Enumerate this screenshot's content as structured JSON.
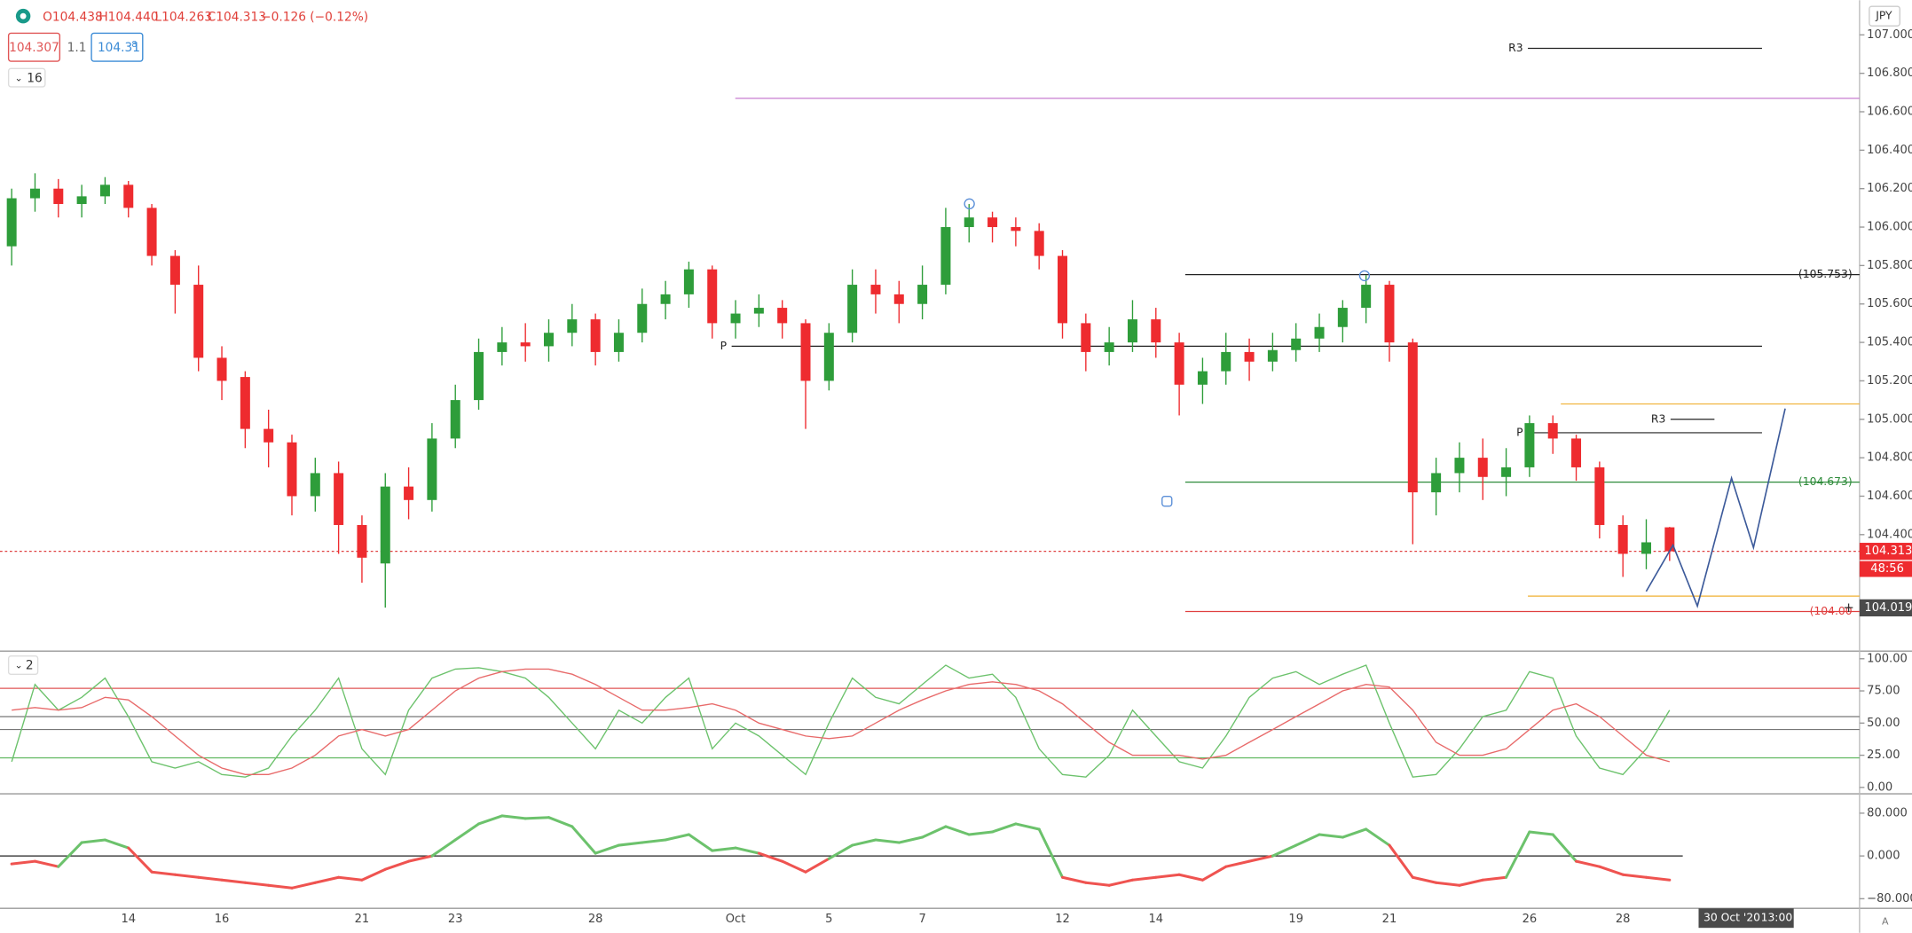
{
  "header": {
    "ohlc": [
      "O104.438",
      "H104.440",
      "L104.263",
      "C104.313"
    ],
    "change": "−0.126 (−0.12%)",
    "bid": "104.307",
    "spread": "1.1",
    "ask": "104.31",
    "ask_small": "8"
  },
  "indicator_toggles": [
    "16",
    "2"
  ],
  "currency": "JPY",
  "crosshair_time": [
    "30 Oct '20",
    "13:00"
  ],
  "countdown": "48:56",
  "corner_badge": "A",
  "chart_data": [
    {
      "type": "candlestick",
      "categories": [
        null,
        null,
        null,
        null,
        null,
        "14",
        null,
        null,
        null,
        "16",
        null,
        null,
        null,
        null,
        null,
        "21",
        null,
        null,
        null,
        "23",
        null,
        null,
        null,
        null,
        null,
        "28",
        null,
        null,
        null,
        null,
        null,
        "Oct",
        null,
        null,
        null,
        "5",
        null,
        null,
        null,
        "7",
        null,
        null,
        null,
        null,
        null,
        "12",
        null,
        null,
        null,
        "14",
        null,
        null,
        null,
        null,
        null,
        "19",
        null,
        null,
        null,
        "21",
        null,
        null,
        null,
        null,
        null,
        "26",
        null,
        null,
        null,
        "28",
        null,
        null
      ],
      "open": [
        105.9,
        106.15,
        106.2,
        106.12,
        106.16,
        106.22,
        106.1,
        105.85,
        105.7,
        105.32,
        105.22,
        104.95,
        104.88,
        104.6,
        104.72,
        104.45,
        104.25,
        104.65,
        104.58,
        104.9,
        105.1,
        105.35,
        105.4,
        105.38,
        105.45,
        105.52,
        105.35,
        105.45,
        105.6,
        105.65,
        105.78,
        105.5,
        105.55,
        105.58,
        105.5,
        105.2,
        105.45,
        105.7,
        105.65,
        105.6,
        105.7,
        106.0,
        106.05,
        106.0,
        105.98,
        105.85,
        105.5,
        105.35,
        105.4,
        105.52,
        105.4,
        105.18,
        105.25,
        105.35,
        105.3,
        105.36,
        105.42,
        105.48,
        105.58,
        105.7,
        105.4,
        104.62,
        104.72,
        104.8,
        104.7,
        104.75,
        104.98,
        104.9,
        104.75,
        104.45,
        104.3,
        104.438
      ],
      "high": [
        106.2,
        106.28,
        106.25,
        106.22,
        106.26,
        106.24,
        106.12,
        105.88,
        105.8,
        105.38,
        105.25,
        105.05,
        104.92,
        104.8,
        104.78,
        104.5,
        104.72,
        104.75,
        104.98,
        105.18,
        105.42,
        105.48,
        105.5,
        105.52,
        105.6,
        105.55,
        105.52,
        105.68,
        105.72,
        105.82,
        105.8,
        105.62,
        105.65,
        105.62,
        105.52,
        105.5,
        105.78,
        105.78,
        105.72,
        105.8,
        106.1,
        106.12,
        106.08,
        106.05,
        106.02,
        105.88,
        105.55,
        105.48,
        105.62,
        105.58,
        105.45,
        105.32,
        105.45,
        105.42,
        105.45,
        105.5,
        105.55,
        105.62,
        105.75,
        105.72,
        105.42,
        104.8,
        104.88,
        104.9,
        104.85,
        105.02,
        105.02,
        104.92,
        104.78,
        104.5,
        104.48,
        104.44
      ],
      "low": [
        105.8,
        106.08,
        106.05,
        106.05,
        106.12,
        106.05,
        105.8,
        105.55,
        105.25,
        105.1,
        104.85,
        104.75,
        104.5,
        104.52,
        104.3,
        104.15,
        104.02,
        104.48,
        104.52,
        104.85,
        105.05,
        105.28,
        105.3,
        105.3,
        105.38,
        105.28,
        105.3,
        105.4,
        105.52,
        105.58,
        105.42,
        105.42,
        105.48,
        105.42,
        104.95,
        105.15,
        105.4,
        105.55,
        105.5,
        105.52,
        105.65,
        105.92,
        105.92,
        105.9,
        105.78,
        105.42,
        105.25,
        105.28,
        105.35,
        105.32,
        105.02,
        105.08,
        105.18,
        105.2,
        105.25,
        105.3,
        105.35,
        105.4,
        105.5,
        105.3,
        104.35,
        104.5,
        104.62,
        104.58,
        104.6,
        104.7,
        104.82,
        104.68,
        104.38,
        104.18,
        104.22,
        104.263
      ],
      "close": [
        106.15,
        106.2,
        106.12,
        106.16,
        106.22,
        106.1,
        105.85,
        105.7,
        105.32,
        105.2,
        104.95,
        104.88,
        104.6,
        104.72,
        104.45,
        104.28,
        104.65,
        104.58,
        104.9,
        105.1,
        105.35,
        105.4,
        105.38,
        105.45,
        105.52,
        105.35,
        105.45,
        105.6,
        105.65,
        105.78,
        105.5,
        105.55,
        105.58,
        105.5,
        105.2,
        105.45,
        105.7,
        105.65,
        105.6,
        105.7,
        106.0,
        106.05,
        106.0,
        105.98,
        105.85,
        105.5,
        105.35,
        105.4,
        105.52,
        105.4,
        105.18,
        105.25,
        105.35,
        105.3,
        105.36,
        105.42,
        105.48,
        105.58,
        105.7,
        105.4,
        104.62,
        104.72,
        104.8,
        104.7,
        104.75,
        104.98,
        104.9,
        104.75,
        104.45,
        104.3,
        104.36,
        104.313
      ],
      "up_color": "#2e9d3a",
      "down_color": "#ee2b2f",
      "ylim": [
        103.8,
        107.18
      ],
      "yticks": [
        {
          "value": 104.2,
          "label": "104.200"
        },
        {
          "value": 104.4,
          "label": "104.400"
        },
        {
          "value": 104.6,
          "label": "104.600"
        },
        {
          "value": 104.8,
          "label": "104.800"
        },
        {
          "value": 105.0,
          "label": "105.000"
        },
        {
          "value": 105.2,
          "label": "105.200"
        },
        {
          "value": 105.4,
          "label": "105.400"
        },
        {
          "value": 105.6,
          "label": "105.600"
        },
        {
          "value": 105.8,
          "label": "105.800"
        },
        {
          "value": 106.0,
          "label": "106.000"
        },
        {
          "value": 106.2,
          "label": "106.200"
        },
        {
          "value": 106.4,
          "label": "106.400"
        },
        {
          "value": 106.6,
          "label": "106.600"
        },
        {
          "value": 106.8,
          "label": "106.800"
        },
        {
          "value": 107.0,
          "label": "107.000"
        }
      ],
      "levels": [
        {
          "value": 106.93,
          "label": "R3",
          "color": "#222222"
        },
        {
          "value": 106.67,
          "color": "#c77dd1"
        },
        {
          "value": 105.38,
          "label": "P",
          "color": "#222222"
        },
        {
          "value": 105.753,
          "label": "(105.753)",
          "color": "#222222"
        },
        {
          "value": 104.673,
          "label": "(104.673)",
          "color": "#2e8b3a"
        },
        {
          "value": 104.0,
          "label": "(104.00",
          "color": "#e04040"
        },
        {
          "value": 105.08,
          "color": "#f0b030"
        },
        {
          "value": 104.08,
          "color": "#f0b030"
        },
        {
          "value": 105.0,
          "label": "R3",
          "color": "#222222"
        },
        {
          "value": 104.93,
          "label": "P",
          "color": "#222222"
        },
        {
          "value": 104.313,
          "color": "#e04040"
        }
      ],
      "last_price": 104.313,
      "crosshair_price": 104.019
    },
    {
      "type": "line",
      "series": [
        {
          "color": "#6cc26c",
          "values": [
            20,
            80,
            60,
            70,
            85,
            55,
            20,
            15,
            20,
            10,
            8,
            15,
            40,
            60,
            85,
            30,
            10,
            60,
            85,
            92,
            93,
            90,
            85,
            70,
            50,
            30,
            60,
            50,
            70,
            85,
            30,
            50,
            40,
            25,
            10,
            50,
            85,
            70,
            65,
            80,
            95,
            85,
            88,
            70,
            30,
            10,
            8,
            25,
            60,
            40,
            20,
            15,
            40,
            70,
            85,
            90,
            80,
            88,
            95,
            50,
            8,
            10,
            30,
            55,
            60,
            90,
            85,
            40,
            15,
            10,
            30,
            60
          ]
        },
        {
          "color": "#e86a6a",
          "values": [
            60,
            62,
            60,
            62,
            70,
            68,
            55,
            40,
            25,
            15,
            10,
            10,
            15,
            25,
            40,
            45,
            40,
            45,
            60,
            75,
            85,
            90,
            92,
            92,
            88,
            80,
            70,
            60,
            60,
            62,
            65,
            60,
            50,
            45,
            40,
            38,
            40,
            50,
            60,
            68,
            75,
            80,
            82,
            80,
            75,
            65,
            50,
            35,
            25,
            25,
            25,
            22,
            25,
            35,
            45,
            55,
            65,
            75,
            80,
            78,
            60,
            35,
            25,
            25,
            30,
            45,
            60,
            65,
            55,
            40,
            25,
            20
          ]
        }
      ],
      "ylim": [
        -4,
        104
      ],
      "yticks": [
        {
          "value": 0,
          "label": "0.00"
        },
        {
          "value": 25,
          "label": "25.00"
        },
        {
          "value": 50,
          "label": "50.00"
        },
        {
          "value": 75,
          "label": "75.00"
        },
        {
          "value": 100,
          "label": "100.00"
        }
      ],
      "hlines": [
        {
          "value": 77,
          "color": "#e05555"
        },
        {
          "value": 55,
          "color": "#777777"
        },
        {
          "value": 45,
          "color": "#777777"
        },
        {
          "value": 23,
          "color": "#5fb85f"
        }
      ]
    },
    {
      "type": "line",
      "series": [
        {
          "color": "#6cc26c",
          "negative_color": "#ef5350",
          "values": [
            -15,
            -10,
            -20,
            25,
            30,
            15,
            -30,
            -35,
            -40,
            -45,
            -50,
            -55,
            -60,
            -50,
            -40,
            -45,
            -25,
            -10,
            0,
            30,
            60,
            75,
            70,
            72,
            55,
            5,
            20,
            25,
            30,
            40,
            10,
            15,
            5,
            -10,
            -30,
            -5,
            20,
            30,
            25,
            35,
            55,
            40,
            45,
            60,
            50,
            -40,
            -50,
            -55,
            -45,
            -40,
            -35,
            -45,
            -20,
            -10,
            0,
            20,
            40,
            35,
            50,
            20,
            -40,
            -50,
            -55,
            -45,
            -40,
            45,
            40,
            -10,
            -20,
            -35,
            -40,
            -45
          ]
        }
      ],
      "ylim": [
        -98,
        114
      ],
      "yticks": [
        {
          "value": -80,
          "label": "−80.000"
        },
        {
          "value": 0,
          "label": "0.000"
        },
        {
          "value": 80,
          "label": "80.000"
        }
      ],
      "hlines": [
        {
          "value": 0,
          "color": "#222222"
        }
      ]
    }
  ]
}
